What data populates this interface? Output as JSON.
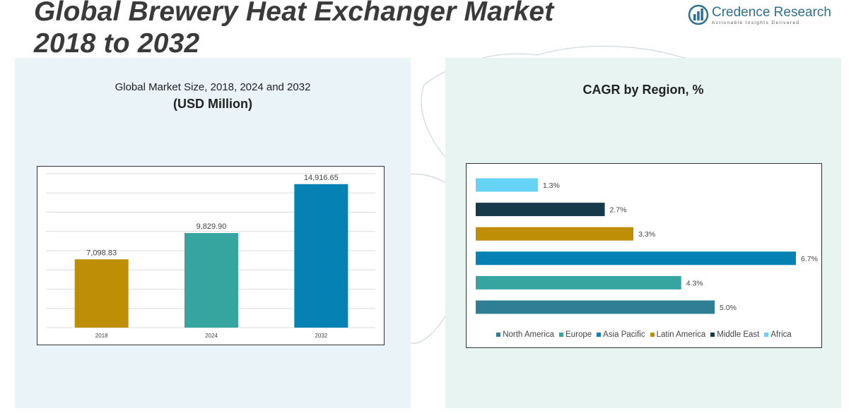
{
  "header": {
    "title_line1": "Global Brewery Heat Exchanger Market",
    "title_line2": "2018 to 2032"
  },
  "logo": {
    "name": "Credence Research",
    "tagline": "Actionable Insights Delivered",
    "icon": "bar-chart-circle-icon"
  },
  "colors": {
    "north_america": "#2e7f96",
    "europe": "#36a5a0",
    "asia_pacific": "#0582b3",
    "latin_america": "#be8f06",
    "middle_east": "#163a4a",
    "africa": "#66d3f5",
    "title": "#3a3a3a"
  },
  "chart_data": [
    {
      "type": "bar",
      "title": "Global Market Size, 2018, 2024 and 2032",
      "subtitle": "(USD Million)",
      "categories": [
        "2018",
        "2024",
        "2032"
      ],
      "values": [
        7098.83,
        9829.9,
        14916.65
      ],
      "value_labels": [
        "7,098.83",
        "9,829.90",
        "14,916.65"
      ],
      "bar_colors": [
        "#be8f06",
        "#36a5a0",
        "#0582b3"
      ],
      "ylim": [
        0,
        16000
      ],
      "grid": true,
      "legend": "none"
    },
    {
      "type": "bar",
      "orientation": "horizontal",
      "title": "CAGR by Region, %",
      "series": [
        {
          "name": "North America",
          "value": 5.0,
          "label": "5.0%",
          "color": "#2e7f96"
        },
        {
          "name": "Europe",
          "value": 4.3,
          "label": "4.3%",
          "color": "#36a5a0"
        },
        {
          "name": "Asia Pacific",
          "value": 6.7,
          "label": "6.7%",
          "color": "#0582b3"
        },
        {
          "name": "Latin America",
          "value": 3.3,
          "label": "3.3%",
          "color": "#be8f06"
        },
        {
          "name": "Middle East",
          "value": 2.7,
          "label": "2.7%",
          "color": "#163a4a"
        },
        {
          "name": "Africa",
          "value": 1.3,
          "label": "1.3%",
          "color": "#66d3f5"
        }
      ],
      "xlim": [
        0,
        6.7
      ],
      "grid": false,
      "legend": "bottom"
    }
  ]
}
